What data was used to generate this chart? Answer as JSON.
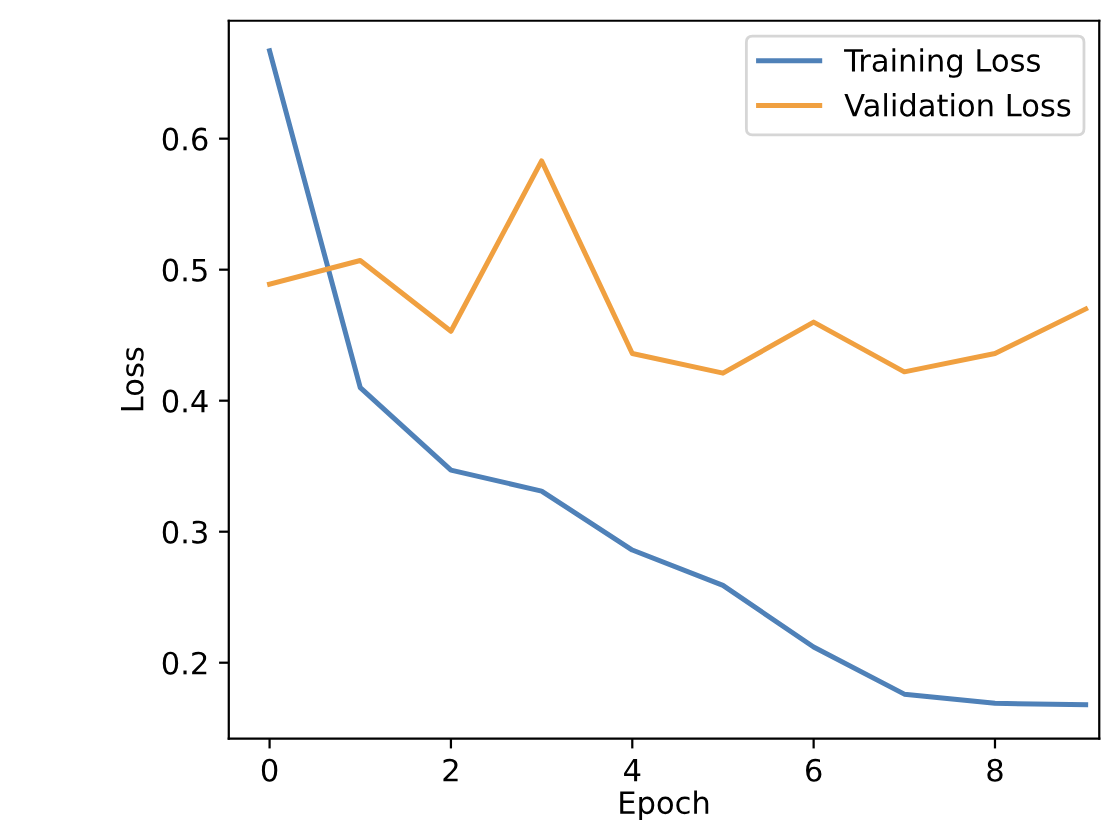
{
  "chart_data": {
    "type": "line",
    "xlabel": "Epoch",
    "ylabel": "Loss",
    "x": [
      0,
      1,
      2,
      3,
      4,
      5,
      6,
      7,
      8,
      9
    ],
    "series": [
      {
        "name": "Training Loss",
        "color": "#4f81b8",
        "values": [
          0.667,
          0.41,
          0.347,
          0.331,
          0.286,
          0.259,
          0.212,
          0.176,
          0.169,
          0.168
        ]
      },
      {
        "name": "Validation Loss",
        "color": "#f0a040",
        "values": [
          0.489,
          0.507,
          0.453,
          0.583,
          0.436,
          0.421,
          0.46,
          0.422,
          0.436,
          0.47
        ]
      }
    ],
    "xlim": [
      -0.45,
      9.15
    ],
    "ylim": [
      0.142,
      0.69
    ],
    "xticks": [
      0,
      2,
      4,
      6,
      8
    ],
    "yticks": [
      0.2,
      0.3,
      0.4,
      0.5,
      0.6
    ],
    "legend": "top right",
    "grid": false
  }
}
